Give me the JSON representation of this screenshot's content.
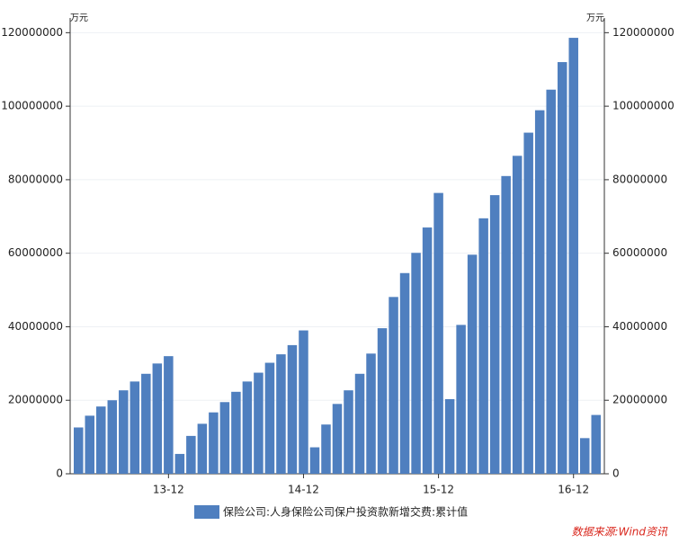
{
  "chart_data": {
    "type": "bar",
    "y_unit": "万元",
    "y2_unit": "万元",
    "categories": [
      null,
      null,
      null,
      null,
      null,
      null,
      null,
      null,
      "13-12",
      null,
      null,
      null,
      null,
      null,
      null,
      null,
      null,
      null,
      null,
      null,
      "14-12",
      null,
      null,
      null,
      null,
      null,
      null,
      null,
      null,
      null,
      null,
      null,
      "15-12",
      null,
      null,
      null,
      null,
      null,
      null,
      null,
      null,
      null,
      null,
      null,
      "16-12",
      null,
      null
    ],
    "series": [
      {
        "name": "保险公司:人身保险公司保户投资款新增交费:累计值",
        "color": "#4f7fbf",
        "values": [
          12600000,
          15800000,
          18300000,
          20000000,
          22700000,
          25100000,
          27200000,
          30000000,
          32000000,
          5400000,
          10300000,
          13600000,
          16700000,
          19500000,
          22300000,
          25100000,
          27500000,
          30200000,
          32500000,
          35000000,
          39000000,
          7200000,
          13400000,
          19000000,
          22700000,
          27200000,
          32700000,
          39600000,
          48100000,
          54600000,
          60100000,
          67000000,
          76400000,
          20300000,
          40500000,
          59600000,
          69500000,
          75800000,
          81000000,
          86500000,
          92800000,
          98900000,
          104500000,
          112000000,
          118600000,
          9700000,
          16000000
        ]
      }
    ],
    "ylim": [
      0,
      124000000
    ],
    "yticks": [
      0,
      20000000,
      40000000,
      60000000,
      80000000,
      100000000,
      120000000
    ],
    "y2lim": [
      0,
      124000000
    ],
    "y2ticks": [
      0,
      20000000,
      40000000,
      60000000,
      80000000,
      100000000,
      120000000
    ],
    "grid": true,
    "source": "数据来源:Wind资讯"
  }
}
